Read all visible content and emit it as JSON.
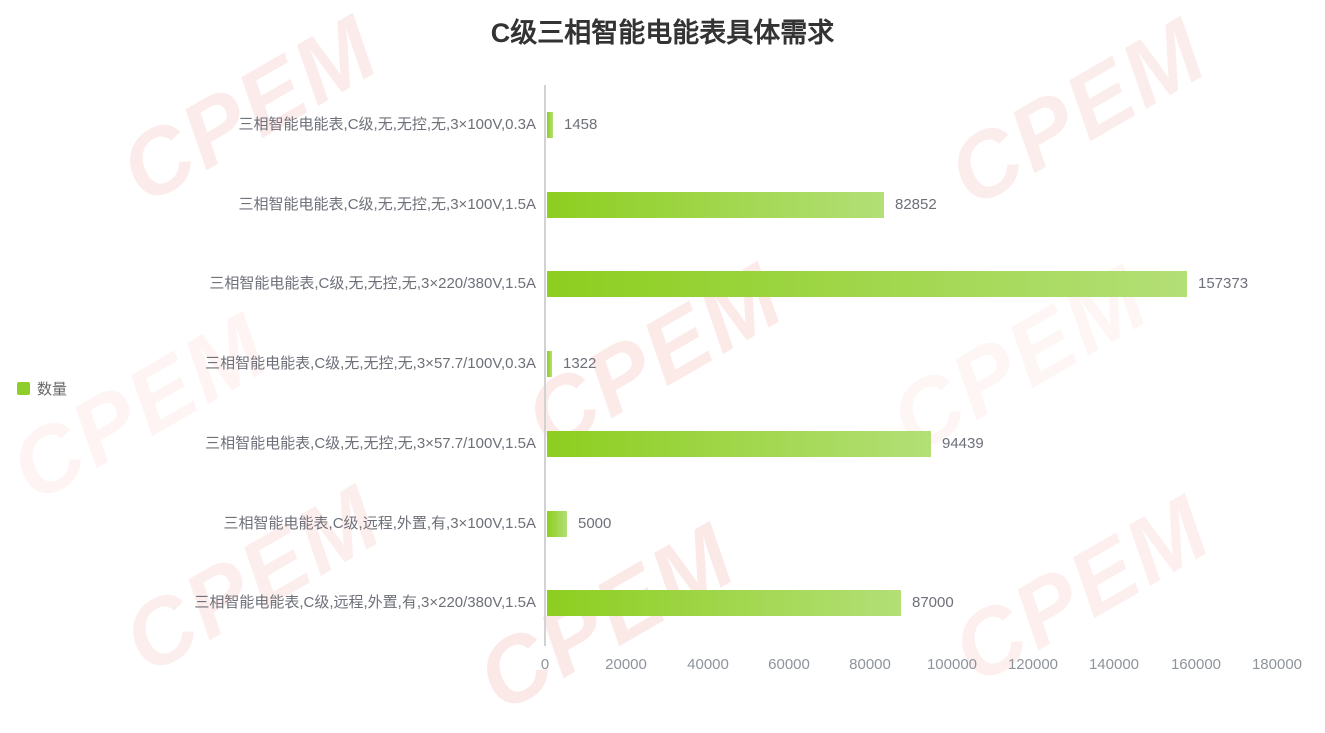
{
  "watermark": {
    "text": "CPEM",
    "color": "#E8796E"
  },
  "chart_data": {
    "type": "bar",
    "orientation": "horizontal",
    "title": "C级三相智能电能表具体需求",
    "legend": [
      {
        "label": "数量",
        "color": "#8FCE2A"
      }
    ],
    "legend_position": "left-middle",
    "categories": [
      "三相智能电能表,C级,无,无控,无,3×100V,0.3A",
      "三相智能电能表,C级,无,无控,无,3×100V,1.5A",
      "三相智能电能表,C级,无,无控,无,3×220/380V,1.5A",
      "三相智能电能表,C级,无,无控,无,3×57.7/100V,0.3A",
      "三相智能电能表,C级,无,无控,无,3×57.7/100V,1.5A",
      "三相智能电能表,C级,远程,外置,有,3×100V,1.5A",
      "三相智能电能表,C级,远程,外置,有,3×220/380V,1.5A"
    ],
    "series": [
      {
        "name": "数量",
        "values": [
          1458,
          82852,
          157373,
          1322,
          94439,
          5000,
          87000
        ]
      }
    ],
    "value_labels": [
      "1458",
      "82852",
      "157373",
      "1322",
      "94439",
      "5000",
      "87000"
    ],
    "x_ticks": [
      0,
      20000,
      40000,
      60000,
      80000,
      100000,
      120000,
      140000,
      160000,
      180000
    ],
    "xlim": [
      0,
      180000
    ],
    "grid": false,
    "bar_gradient": [
      "#8DCE1F",
      "#B3DF77"
    ],
    "category_label_color": "#6E7079",
    "value_label_color": "#6E7079",
    "axis_tick_color": "#8E949B",
    "title_color": "#333333"
  }
}
